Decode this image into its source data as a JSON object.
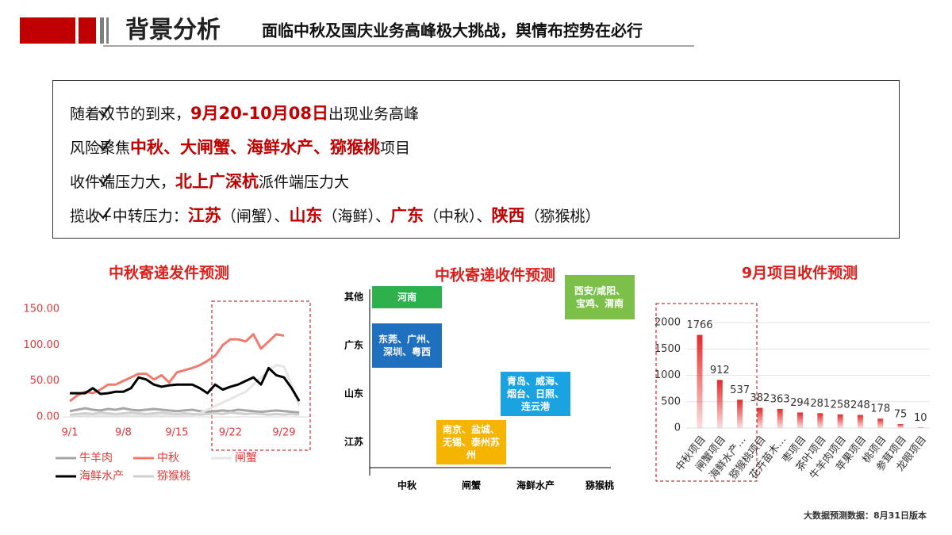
{
  "header": {
    "title": "背景分析",
    "subtitle": "面临中秋及国庆业务高峰极大挑战，舆情布控势在必行"
  },
  "bullets": [
    {
      "segments": [
        {
          "text": "随着双节的到来，"
        },
        {
          "text": "9月20-10月08日",
          "emphasis": true
        },
        {
          "text": "出现业务高峰"
        }
      ]
    },
    {
      "segments": [
        {
          "text": "风险聚焦"
        },
        {
          "text": "中秋、大闸蟹、海鲜水产、猕猴桃",
          "emphasis": true
        },
        {
          "text": "项目"
        }
      ]
    },
    {
      "segments": [
        {
          "text": "收件端压力大，"
        },
        {
          "text": "北上广深杭",
          "emphasis": true
        },
        {
          "text": "派件端压力大"
        }
      ]
    },
    {
      "segments": [
        {
          "text": "揽收+中转压力："
        },
        {
          "text": "江苏",
          "emphasis": true
        },
        {
          "text": "（闸蟹）、"
        },
        {
          "text": "山东",
          "emphasis": true
        },
        {
          "text": "（海鲜）、"
        },
        {
          "text": "广东",
          "emphasis": true
        },
        {
          "text": "（中秋）、"
        },
        {
          "text": "陕西",
          "emphasis": true
        },
        {
          "text": "（猕猴桃）"
        }
      ]
    }
  ],
  "chart_data": [
    {
      "type": "line",
      "title": "中秋寄递发件预测",
      "categories": [
        "9/1",
        null,
        null,
        null,
        null,
        null,
        null,
        "9/8",
        null,
        null,
        null,
        null,
        null,
        null,
        "9/15",
        null,
        null,
        null,
        null,
        null,
        null,
        "9/22",
        null,
        null,
        null,
        null,
        null,
        null,
        "9/29",
        null,
        null
      ],
      "series": [
        {
          "name": "牛羊肉",
          "color": "#a6a6a6",
          "values": [
            8,
            10,
            12,
            10,
            9,
            11,
            10,
            12,
            10,
            9,
            10,
            11,
            10,
            9,
            8,
            9,
            10,
            8,
            7,
            8,
            9,
            8,
            10,
            9,
            8,
            7,
            8,
            9,
            8,
            7,
            6
          ]
        },
        {
          "name": "中秋",
          "color": "#f07a6e",
          "values": [
            22,
            30,
            35,
            33,
            38,
            45,
            45,
            50,
            55,
            60,
            60,
            52,
            58,
            48,
            62,
            65,
            68,
            72,
            78,
            85,
            100,
            108,
            108,
            105,
            115,
            95,
            105,
            115,
            113,
            null,
            null
          ]
        },
        {
          "name": "闸蟹",
          "color": "#e6e6e6",
          "values": [
            2,
            2,
            2,
            2,
            2,
            2,
            2,
            2,
            2,
            2,
            2,
            2,
            2,
            2,
            2,
            2,
            2,
            5,
            10,
            15,
            20,
            25,
            30,
            35,
            45,
            55,
            65,
            72,
            70,
            45,
            15
          ]
        },
        {
          "name": "海鲜水产",
          "color": "#000000",
          "values": [
            33,
            33,
            33,
            40,
            32,
            33,
            35,
            35,
            40,
            55,
            52,
            45,
            42,
            44,
            45,
            45,
            45,
            40,
            33,
            45,
            38,
            42,
            45,
            50,
            55,
            45,
            68,
            58,
            55,
            40,
            22
          ]
        },
        {
          "name": "猕猴桃",
          "color": "#d0d0d0",
          "values": [
            3,
            4,
            5,
            4,
            6,
            5,
            4,
            5,
            6,
            5,
            4,
            5,
            6,
            5,
            4,
            5,
            4,
            3,
            4,
            5,
            4,
            6,
            5,
            4,
            5,
            4,
            3,
            4,
            3,
            4,
            3
          ]
        }
      ],
      "ylim": [
        0,
        150
      ],
      "yticks": [
        {
          "value": 0,
          "label": "0.00"
        },
        {
          "value": 50,
          "label": "50.00"
        },
        {
          "value": 100,
          "label": "100.00"
        },
        {
          "value": 150,
          "label": "150.00"
        }
      ]
    },
    {
      "type": "matrix",
      "title": "中秋寄递收件预测",
      "x_categories": [
        "中秋",
        "闸蟹",
        "海鲜水产",
        "猕猴桃"
      ],
      "y_categories": [
        "江苏",
        "山东",
        "广东",
        "其他"
      ],
      "cells": [
        {
          "x": "中秋",
          "y": "其他",
          "label": "河南",
          "color": "#2eb04c"
        },
        {
          "x": "猕猴桃",
          "y": "其他",
          "label": "西安/咸阳、宝鸡、渭南",
          "color": "#7cc04a"
        },
        {
          "x": "中秋",
          "y": "广东",
          "label": "东莞、广州、深圳、粤西",
          "color": "#1f70bf"
        },
        {
          "x": "海鲜水产",
          "y": "山东",
          "label": "青岛、威海、烟台、日照、连云港",
          "color": "#1aa3e0"
        },
        {
          "x": "闸蟹",
          "y": "江苏",
          "label": "南京、盐城、无锡、泰州苏州",
          "color": "#f5b400"
        }
      ]
    },
    {
      "type": "bar",
      "title": "9月项目收件预测",
      "categories": [
        "中秋项目",
        "闸蟹项目",
        "海鲜水产…",
        "猕猴桃项目",
        "花卉苗木…",
        "枣项目",
        "茶叶项目",
        "牛羊肉项目",
        "苹果项目",
        "桃项目",
        "参茸项目",
        "龙眼项目"
      ],
      "values": [
        1766,
        912,
        537,
        382,
        363,
        294,
        281,
        258,
        248,
        178,
        75,
        10
      ],
      "color": "#e32b2b",
      "ylim": [
        0,
        2000
      ],
      "yticks": [
        0,
        500,
        1000,
        1500,
        2000
      ],
      "grid": true
    }
  ],
  "footer": "大数据预测数据：8月31日版本"
}
